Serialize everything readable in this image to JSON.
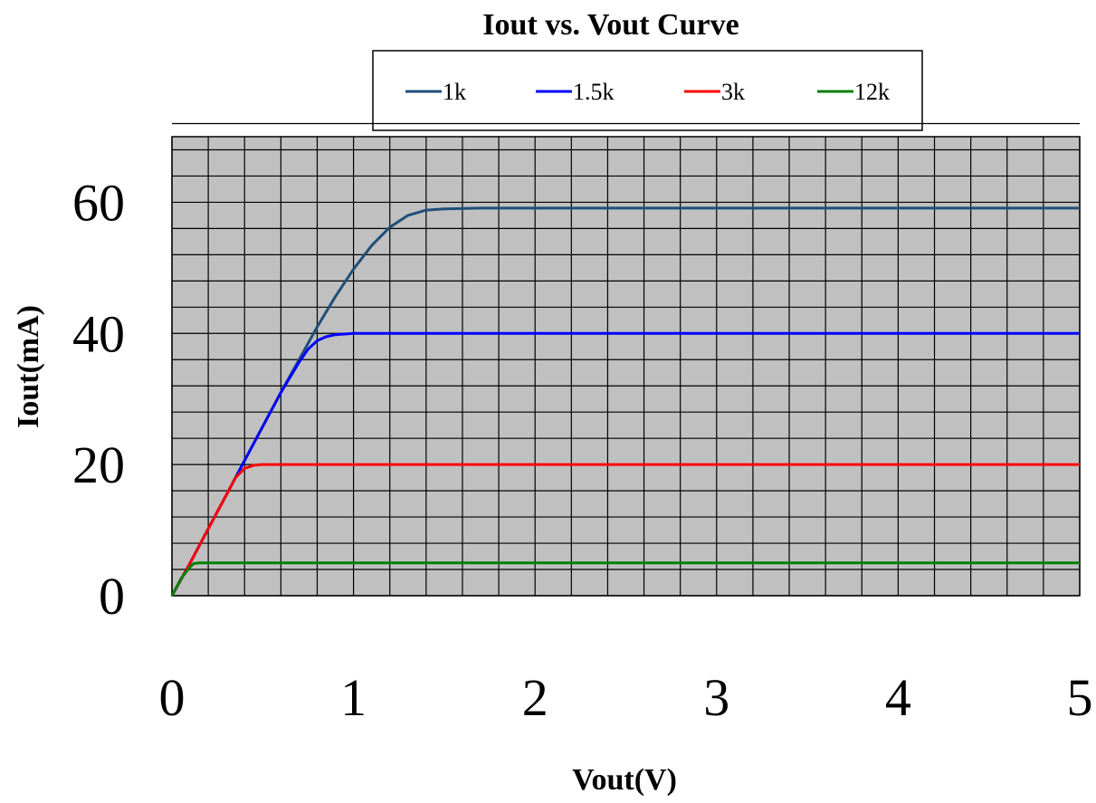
{
  "chart_data": {
    "type": "line",
    "title": "Iout  vs. Vout  Curve",
    "xlabel": "Vout(V)",
    "ylabel": "Iout(mA)",
    "xlim": [
      0,
      5
    ],
    "ylim": [
      0,
      70
    ],
    "x_ticks": [
      0,
      1,
      2,
      3,
      4,
      5
    ],
    "x_tick_labels": [
      "0",
      "1",
      "2",
      "3",
      "4",
      "5"
    ],
    "y_ticks": [
      0,
      20,
      40,
      60
    ],
    "y_tick_labels": [
      "0",
      "20",
      "40",
      "60"
    ],
    "grid": true,
    "grid_minor_x": 0.2,
    "grid_minor_y": 4,
    "legend_position": "top",
    "plot_background": "#c0c0c0",
    "series": [
      {
        "name": "1k",
        "color": "#1f4e79",
        "x": [
          0,
          0.1,
          0.2,
          0.3,
          0.4,
          0.5,
          0.6,
          0.7,
          0.8,
          0.9,
          1.0,
          1.1,
          1.2,
          1.3,
          1.4,
          1.5,
          1.7,
          2.0,
          3.0,
          4.0,
          5.0
        ],
        "y": [
          0,
          5,
          10.2,
          15.4,
          20.6,
          25.8,
          31,
          36,
          41,
          45.6,
          49.8,
          53.4,
          56.2,
          58,
          58.8,
          59,
          59.1,
          59.1,
          59.1,
          59.1,
          59.1
        ]
      },
      {
        "name": "1.5k",
        "color": "#0000ff",
        "x": [
          0,
          0.1,
          0.2,
          0.3,
          0.4,
          0.5,
          0.6,
          0.7,
          0.75,
          0.8,
          0.85,
          0.9,
          1.0,
          1.5,
          2.0,
          3.0,
          4.0,
          5.0
        ],
        "y": [
          0,
          5,
          10.2,
          15.4,
          20.6,
          25.8,
          31,
          35.6,
          37.6,
          38.9,
          39.5,
          39.8,
          40,
          40,
          40,
          40,
          40,
          40
        ]
      },
      {
        "name": "3k",
        "color": "#ff0000",
        "x": [
          0,
          0.1,
          0.2,
          0.3,
          0.35,
          0.4,
          0.45,
          0.5,
          1.0,
          2.0,
          3.0,
          4.0,
          5.0
        ],
        "y": [
          0,
          5,
          10.2,
          15.4,
          18,
          19.4,
          19.9,
          20,
          20,
          20,
          20,
          20,
          20
        ]
      },
      {
        "name": "12k",
        "color": "#008000",
        "x": [
          0,
          0.05,
          0.1,
          0.12,
          0.15,
          0.2,
          1.0,
          2.0,
          3.0,
          4.0,
          5.0
        ],
        "y": [
          0,
          2.6,
          4.4,
          4.9,
          5,
          5,
          5,
          5,
          5,
          5,
          5
        ]
      }
    ]
  }
}
